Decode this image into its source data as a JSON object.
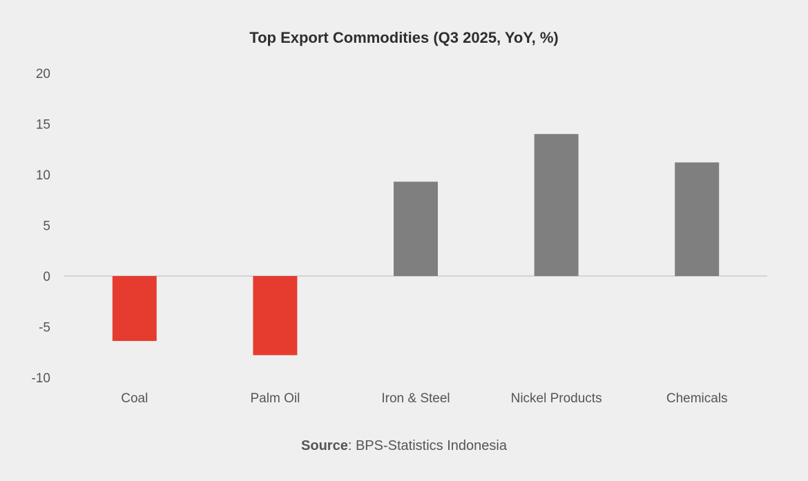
{
  "chart_data": {
    "type": "bar",
    "title": "Top Export Commodities (Q3 2025, YoY, %)",
    "categories": [
      "Coal",
      "Palm Oil",
      "Iron & Steel",
      "Nickel Products",
      "Chemicals"
    ],
    "values": [
      -6.4,
      -7.8,
      9.3,
      14.0,
      11.2
    ],
    "ylim": [
      -10,
      20
    ],
    "yticks": [
      "20",
      "15",
      "10",
      "5",
      "0",
      "-5",
      "-10"
    ],
    "xlabel": "",
    "ylabel": "",
    "grid": false,
    "colors": {
      "negative": "#e63c2f",
      "positive": "#7f7f7f",
      "zero_line": "#d4d4d4"
    }
  },
  "source": {
    "label": "Source",
    "text": ": BPS-Statistics Indonesia"
  }
}
